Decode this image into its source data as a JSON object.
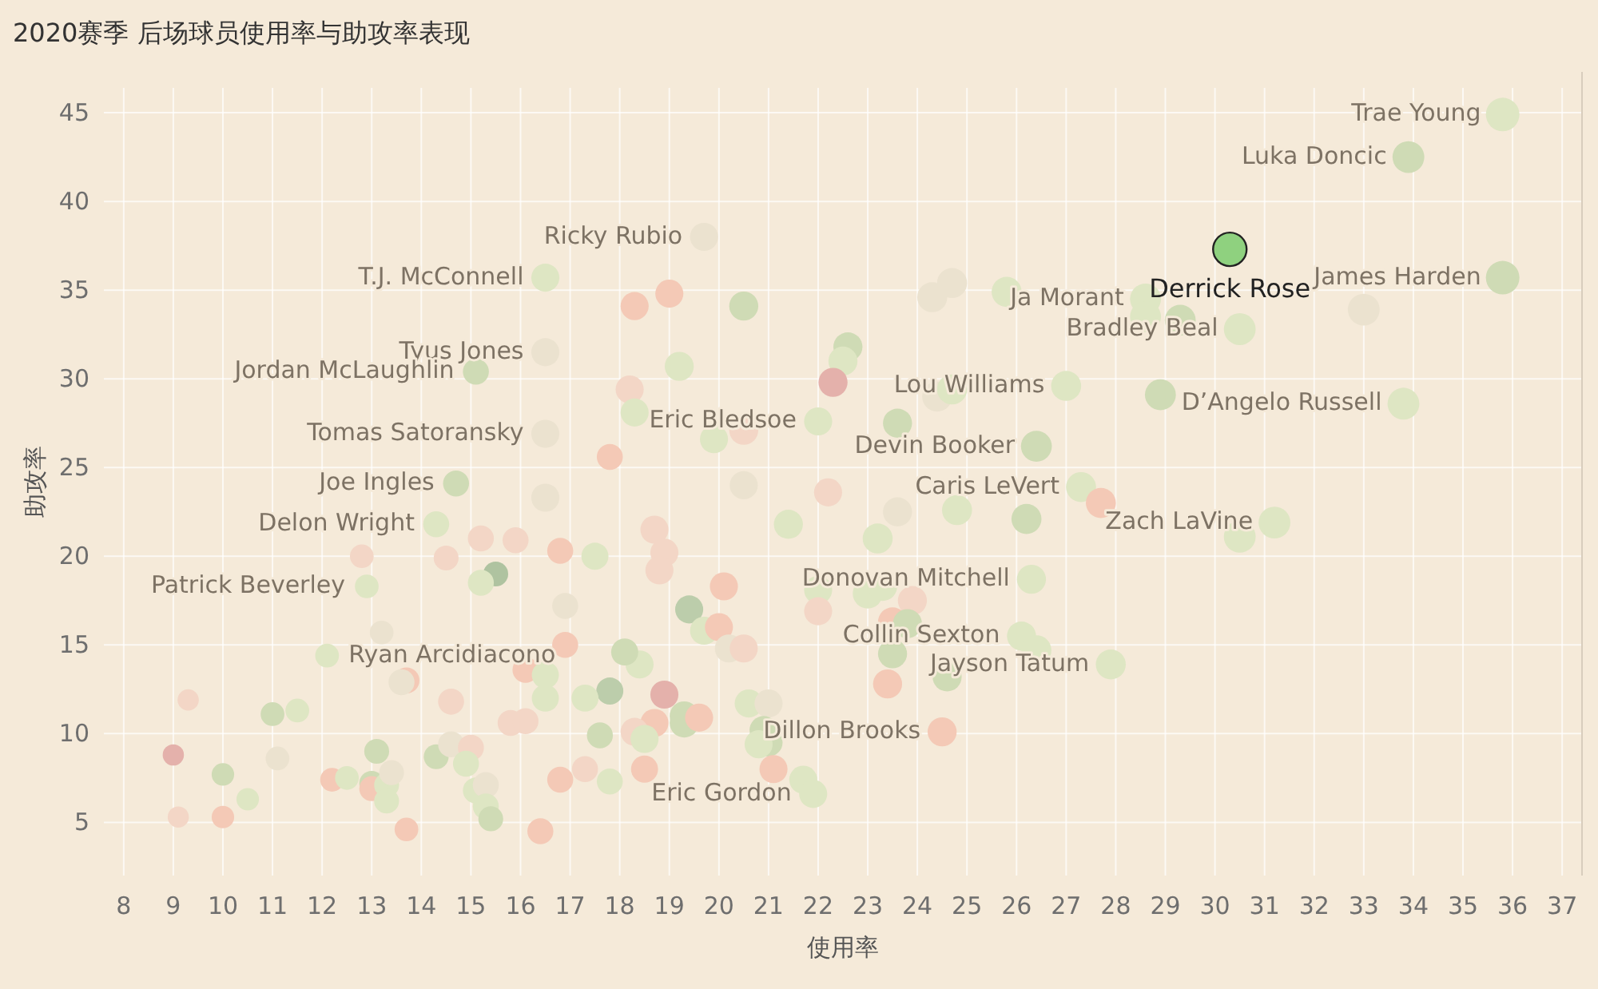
{
  "chart_data": {
    "type": "bubble",
    "title": "2020赛季 后场球员使用率与助攻率表现",
    "xlabel": "使用率",
    "ylabel": "助攻率",
    "xlim": [
      7.6,
      37.4
    ],
    "ylim": [
      2,
      46.4
    ],
    "xticks": [
      8,
      9,
      10,
      11,
      12,
      13,
      14,
      15,
      16,
      17,
      18,
      19,
      20,
      21,
      22,
      23,
      24,
      25,
      26,
      27,
      28,
      29,
      30,
      31,
      32,
      33,
      34,
      35,
      36,
      37
    ],
    "yticks": [
      5,
      10,
      15,
      20,
      25,
      30,
      35,
      40,
      45
    ],
    "grid": true,
    "series": [
      {
        "x": [
          16.5,
          18.3,
          19.0,
          16.5,
          15.1,
          18.2,
          18.3,
          16.5,
          17.8,
          14.7,
          16.5,
          19.7,
          20.5,
          19.2,
          19.9,
          20.5,
          22.6,
          22.5,
          22.3,
          22.0,
          23.6,
          20.5,
          22.2,
          24.3,
          24.7,
          25.8,
          24.4,
          24.7,
          27.0,
          26.4,
          27.3,
          27.7,
          28.6,
          28.6,
          35.8,
          33.9,
          35.8,
          33.0,
          29.3,
          30.5,
          28.9,
          33.8,
          30.5,
          31.2,
          21.4,
          23.6,
          24.8,
          26.2,
          23.2,
          18.7,
          18.9,
          18.8,
          26.3,
          20.1,
          22.0,
          22.0,
          23.0,
          23.3,
          23.9,
          19.4,
          19.7,
          20.0,
          20.2,
          20.5,
          23.5,
          23.8,
          23.5,
          23.4,
          24.6,
          26.1,
          26.4,
          27.9,
          18.4,
          18.1,
          18.9,
          19.3,
          19.3,
          19.6,
          18.7,
          18.3,
          18.5,
          18.5,
          20.6,
          21.0,
          20.9,
          21.0,
          20.8,
          21.1,
          21.7,
          21.9,
          24.5,
          14.3,
          15.2,
          15.9,
          16.8,
          17.5,
          12.8,
          14.5,
          15.5,
          15.2,
          12.9,
          16.9,
          13.2,
          12.1,
          16.9,
          16.1,
          16.5,
          17.8,
          16.5,
          17.3,
          14.6,
          13.7,
          13.6,
          9.3,
          11.0,
          11.5,
          15.8,
          16.1,
          17.6,
          9.0,
          11.1,
          13.1,
          14.3,
          14.6,
          15.0,
          14.9,
          10.0,
          10.5,
          9.1,
          10.0,
          12.2,
          12.5,
          13.0,
          13.0,
          13.3,
          13.4,
          13.3,
          13.7,
          15.1,
          15.3,
          15.3,
          15.4,
          16.4,
          16.8,
          17.3,
          17.8
        ],
        "values": [
          35.7,
          34.1,
          34.8,
          31.5,
          30.4,
          29.4,
          28.1,
          26.9,
          25.6,
          24.1,
          23.3,
          38.0,
          34.1,
          30.7,
          26.6,
          27.1,
          31.8,
          31.0,
          29.8,
          27.6,
          27.5,
          24.0,
          23.6,
          34.6,
          35.4,
          34.9,
          29.0,
          29.4,
          29.6,
          26.2,
          23.9,
          23.0,
          34.5,
          33.5,
          44.9,
          42.5,
          35.7,
          33.9,
          33.3,
          32.8,
          29.1,
          28.6,
          21.1,
          21.9,
          21.8,
          22.5,
          22.6,
          22.1,
          21.0,
          21.5,
          20.2,
          19.2,
          18.7,
          18.3,
          18.1,
          16.9,
          17.9,
          18.3,
          17.5,
          17.0,
          15.8,
          16.0,
          14.8,
          14.8,
          16.3,
          16.2,
          14.5,
          12.8,
          13.2,
          15.5,
          14.7,
          13.9,
          13.9,
          14.6,
          12.2,
          11.0,
          10.6,
          10.9,
          10.6,
          10.1,
          9.7,
          8.0,
          11.7,
          11.7,
          10.2,
          9.5,
          9.4,
          8.0,
          7.4,
          6.6,
          10.1,
          21.8,
          21.0,
          20.9,
          20.3,
          20.0,
          20.0,
          19.9,
          19.0,
          18.5,
          18.3,
          17.2,
          15.7,
          14.4,
          15.0,
          13.6,
          13.3,
          12.4,
          12.0,
          12.0,
          11.8,
          13.0,
          12.9,
          11.9,
          11.1,
          11.3,
          10.6,
          10.7,
          9.9,
          8.8,
          8.6,
          9.0,
          8.7,
          9.4,
          9.2,
          8.3,
          7.7,
          6.3,
          5.3,
          5.3,
          7.4,
          7.5,
          7.2,
          6.9,
          7.1,
          7.8,
          6.2,
          4.6,
          6.8,
          7.1,
          5.9,
          5.2,
          4.5,
          7.4,
          8.0,
          7.3
        ],
        "sizes": [
          0.7,
          0.7,
          0.7,
          0.7,
          0.6,
          0.7,
          0.7,
          0.7,
          0.6,
          0.6,
          0.7,
          0.7,
          0.75,
          0.75,
          0.7,
          0.75,
          0.75,
          0.75,
          0.75,
          0.7,
          0.75,
          0.7,
          0.7,
          0.8,
          0.8,
          0.8,
          0.8,
          0.8,
          0.8,
          0.85,
          0.8,
          0.8,
          0.85,
          0.85,
          1,
          0.9,
          1,
          0.9,
          0.85,
          0.9,
          0.85,
          0.9,
          0.9,
          0.9,
          0.75,
          0.75,
          0.8,
          0.8,
          0.8,
          0.7,
          0.7,
          0.7,
          0.75,
          0.7,
          0.7,
          0.7,
          0.8,
          0.75,
          0.75,
          0.7,
          0.7,
          0.7,
          0.7,
          0.7,
          0.75,
          0.75,
          0.75,
          0.75,
          0.75,
          0.75,
          0.8,
          0.8,
          0.7,
          0.65,
          0.7,
          0.75,
          0.75,
          0.7,
          0.7,
          0.7,
          0.7,
          0.65,
          0.7,
          0.7,
          0.7,
          0.7,
          0.7,
          0.7,
          0.7,
          0.7,
          0.75,
          0.6,
          0.6,
          0.6,
          0.6,
          0.65,
          0.5,
          0.55,
          0.55,
          0.6,
          0.5,
          0.6,
          0.5,
          0.5,
          0.6,
          0.6,
          0.65,
          0.65,
          0.65,
          0.65,
          0.6,
          0.6,
          0.6,
          0.4,
          0.5,
          0.5,
          0.6,
          0.6,
          0.6,
          0.4,
          0.5,
          0.55,
          0.55,
          0.6,
          0.6,
          0.6,
          0.45,
          0.45,
          0.4,
          0.45,
          0.5,
          0.5,
          0.55,
          0.55,
          0.55,
          0.55,
          0.55,
          0.5,
          0.6,
          0.6,
          0.6,
          0.55,
          0.6,
          0.6,
          0.6,
          0.6
        ],
        "colors": [
          "#dee6c3",
          "#f4c9b6",
          "#f4c9b6",
          "#ebe2cf",
          "#cfdbb5",
          "#f3d6c6",
          "#dee6c3",
          "#ebe2cf",
          "#f4c9b6",
          "#cfdbb5",
          "#ebe2cf",
          "#ebe2cf",
          "#cfdbb5",
          "#dee6c3",
          "#dee6c3",
          "#f3d6c6",
          "#cfdbb5",
          "#dee6c3",
          "#e4b1ab",
          "#dee6c3",
          "#cfdbb5",
          "#ebe2cf",
          "#f3d6c6",
          "#ebe2cf",
          "#ebe2cf",
          "#dee6c3",
          "#ebe2cf",
          "#dee6c3",
          "#dee6c3",
          "#cfdbb5",
          "#dee6c3",
          "#f4c9b6",
          "#dee6c3",
          "#dee6c3",
          "#dee6c3",
          "#cfdbb5",
          "#cfdbb5",
          "#ebe2cf",
          "#cfdbb5",
          "#dee6c3",
          "#cfdbb5",
          "#dee6c3",
          "#dee6c3",
          "#dee6c3",
          "#dee6c3",
          "#ebe2cf",
          "#dee6c3",
          "#cfdbb5",
          "#dee6c3",
          "#f3d6c6",
          "#f3d6c6",
          "#f3d6c6",
          "#dee6c3",
          "#f4c9b6",
          "#dee6c3",
          "#f3d6c6",
          "#dee6c3",
          "#dee6c3",
          "#f3d6c6",
          "#bccdab",
          "#dee6c3",
          "#f4c9b6",
          "#ebe2cf",
          "#f3d6c6",
          "#f4c9b6",
          "#cfdbb5",
          "#cfdbb5",
          "#f4c9b6",
          "#cfdbb5",
          "#dee6c3",
          "#dee6c3",
          "#dee6c3",
          "#dee6c3",
          "#cfdbb5",
          "#e4b1ab",
          "#cfdbb5",
          "#cfdbb5",
          "#f4c9b6",
          "#f4c9b6",
          "#f3d6c6",
          "#dee6c3",
          "#f4c9b6",
          "#dee6c3",
          "#ebe2cf",
          "#cfdbb5",
          "#cfdbb5",
          "#dee6c3",
          "#f4c9b6",
          "#dee6c3",
          "#dee6c3",
          "#f4c9b6",
          "#dee6c3",
          "#f3d6c6",
          "#f3d6c6",
          "#f4c9b6",
          "#dee6c3",
          "#f3d6c6",
          "#f3d6c6",
          "#afc3a0",
          "#dee6c3",
          "#dee6c3",
          "#ebe2cf",
          "#ebe2cf",
          "#dee6c3",
          "#f4c9b6",
          "#f4c9b6",
          "#dee6c3",
          "#bccdab",
          "#dee6c3",
          "#dee6c3",
          "#f3d6c6",
          "#f4c9b6",
          "#ebe2cf",
          "#f3d6c6",
          "#cfdbb5",
          "#dee6c3",
          "#f3d6c6",
          "#f3d6c6",
          "#cfdbb5",
          "#e4b1ab",
          "#ebe2cf",
          "#cfdbb5",
          "#cfdbb5",
          "#ebe2cf",
          "#f3d6c6",
          "#dee6c3",
          "#cfdbb5",
          "#dee6c3",
          "#f3d6c6",
          "#f4c9b6",
          "#f4c9b6",
          "#dee6c3",
          "#cfdbb5",
          "#f4c9b6",
          "#dee6c3",
          "#ebe2cf",
          "#dee6c3",
          "#f4c9b6",
          "#dee6c3",
          "#ebe2cf",
          "#dee6c3",
          "#cfdbb5",
          "#f4c9b6",
          "#f4c9b6",
          "#f3d6c6",
          "#dee6c3"
        ]
      },
      {
        "name": "Derrick Rose",
        "color": "#8fd17f",
        "x": [
          30.3
        ],
        "values": [
          37.3
        ],
        "sizes": [
          1
        ]
      }
    ],
    "annotations": [
      {
        "text": "T.J. McConnell",
        "x": 16.5,
        "y": 35.7
      },
      {
        "text": "Tyus Jones",
        "x": 16.5,
        "y": 31.5
      },
      {
        "text": "Jordan McLaughlin",
        "x": 15.1,
        "y": 30.4
      },
      {
        "text": "Tomas Satoransky",
        "x": 16.5,
        "y": 26.9
      },
      {
        "text": "Joe Ingles",
        "x": 14.7,
        "y": 24.1
      },
      {
        "text": "Delon Wright",
        "x": 14.3,
        "y": 21.8
      },
      {
        "text": "Patrick Beverley",
        "x": 12.9,
        "y": 18.3
      },
      {
        "text": "Ryan Arcidiacono",
        "x": 12.1,
        "y": 14.4
      },
      {
        "text": "Ricky Rubio",
        "x": 19.7,
        "y": 38.0
      },
      {
        "text": "Ja Morant",
        "x": 28.6,
        "y": 34.5
      },
      {
        "text": "Lou Williams",
        "x": 27.0,
        "y": 29.6
      },
      {
        "text": "Eric Bledsoe",
        "x": 22.0,
        "y": 27.6
      },
      {
        "text": "Devin Booker",
        "x": 26.4,
        "y": 26.2
      },
      {
        "text": "Caris LeVert",
        "x": 27.3,
        "y": 23.9
      },
      {
        "text": "Luka Doncic",
        "x": 33.9,
        "y": 42.5
      },
      {
        "text": "Trae Young",
        "x": 35.8,
        "y": 44.9
      },
      {
        "text": "James Harden",
        "x": 35.8,
        "y": 35.7
      },
      {
        "text": "D’Angelo Russell",
        "x": 33.8,
        "y": 28.6
      },
      {
        "text": "Bradley Beal",
        "x": 30.5,
        "y": 32.8
      },
      {
        "text": "Zach LaVine",
        "x": 31.2,
        "y": 21.9
      },
      {
        "text": "Donovan Mitchell",
        "x": 26.3,
        "y": 18.7
      },
      {
        "text": "Collin Sexton",
        "x": 26.1,
        "y": 15.5
      },
      {
        "text": "Jayson Tatum",
        "x": 27.9,
        "y": 13.9
      },
      {
        "text": "Dillon Brooks",
        "x": 24.5,
        "y": 10.1
      },
      {
        "text": "Eric Gordon",
        "x": 21.9,
        "y": 6.6
      }
    ]
  }
}
